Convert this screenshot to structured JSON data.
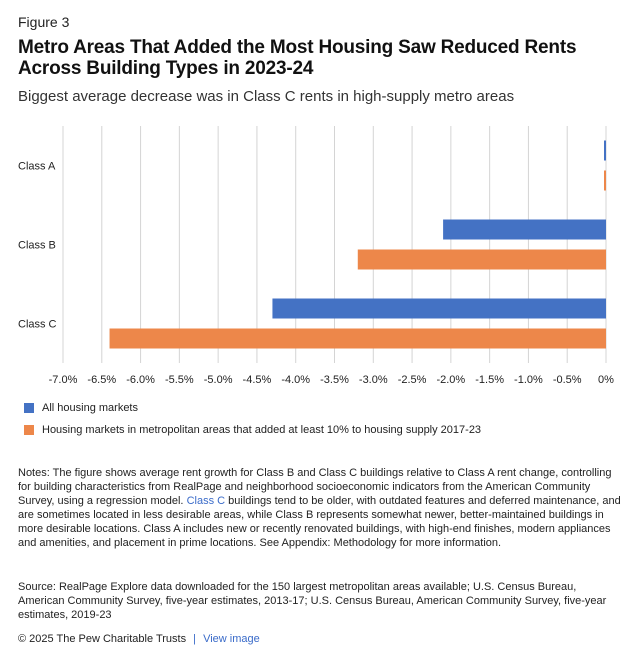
{
  "header": {
    "figure_label": "Figure 3",
    "title": "Metro Areas That Added the Most Housing Saw Reduced Rents Across Building Types in 2023-24",
    "subtitle": "Biggest average decrease was in Class C rents in high-supply metro areas"
  },
  "colors": {
    "series_all": "#4472C4",
    "series_high": "#ED874A",
    "grid": "#d4d4d4",
    "link": "#3a6bc9"
  },
  "chart_data": {
    "type": "bar",
    "orientation": "horizontal",
    "categories": [
      "Class A",
      "Class B",
      "Class C"
    ],
    "series": [
      {
        "name": "All housing markets",
        "values": [
          0.0,
          -2.1,
          -4.3
        ]
      },
      {
        "name": "Housing markets in metropolitan areas that added at least 10% to housing supply 2017-23",
        "values": [
          0.0,
          -3.2,
          -6.4
        ]
      }
    ],
    "xlim": [
      -7.0,
      0
    ],
    "xticks": [
      -7.0,
      -6.5,
      -6.0,
      -5.5,
      -5.0,
      -4.5,
      -4.0,
      -3.5,
      -3.0,
      -2.5,
      -2.0,
      -1.5,
      -1.0,
      -0.5,
      0
    ],
    "xtick_labels": [
      "-7.0%",
      "-6.5%",
      "-6.0%",
      "-5.5%",
      "-5.0%",
      "-4.5%",
      "-4.0%",
      "-3.5%",
      "-3.0%",
      "-2.5%",
      "-2.0%",
      "-1.5%",
      "-1.0%",
      "-0.5%",
      "0%"
    ],
    "grid": true,
    "legend_position": "bottom-left"
  },
  "legend": {
    "item_1": "All housing markets",
    "item_2": "Housing markets in metropolitan areas that added at least 10% to housing supply 2017-23"
  },
  "notes": {
    "part_1": "Notes: The figure shows average rent growth for Class B and Class C buildings relative to Class A rent change, controlling for building characteristics from RealPage and neighborhood socioeconomic indicators from the American Community Survey, using a regression model.",
    "highlight": "Class C",
    "part_2": "buildings tend to be older, with outdated features and deferred maintenance, and are sometimes located in less desirable areas, while Class B represents somewhat newer, better-maintained buildings in more desirable locations. Class A includes new or recently renovated buildings, with high-end finishes, modern appliances and amenities, and placement in prime locations. See Appendix: Methodology for more information."
  },
  "source": "Source: RealPage Explore data downloaded for the 150 largest metropolitan areas available; U.S. Census Bureau, American Community Survey, five-year estimates, 2013-17; U.S. Census Bureau, American Community Survey, five-year estimates, 2019-23",
  "footer": {
    "copyright": "© 2025 The Pew Charitable Trusts",
    "separator": "|",
    "link": "View image"
  }
}
